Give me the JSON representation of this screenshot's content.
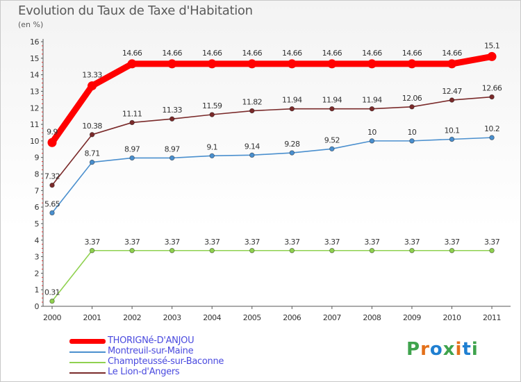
{
  "title": "Evolution du Taux de Taxe d'Habitation",
  "subtitle": "(en %)",
  "brand": {
    "text": "Proxiti",
    "colors": [
      "#3fa34d",
      "#e3701a",
      "#1f7fd1",
      "#3fa34d",
      "#e3701a",
      "#1f7fd1",
      "#3fa34d"
    ]
  },
  "chart_data": {
    "type": "line",
    "x": [
      "2000",
      "2001",
      "2002",
      "2003",
      "2004",
      "2005",
      "2006",
      "2007",
      "2008",
      "2009",
      "2010",
      "2011"
    ],
    "ylim": [
      0,
      16
    ],
    "yticks": [
      0,
      1,
      2,
      3,
      4,
      5,
      6,
      7,
      8,
      9,
      10,
      11,
      12,
      13,
      14,
      15,
      16
    ],
    "grid": false,
    "legend_position": "bottom-left",
    "series": [
      {
        "name": "THORIGNé-D'ANJOU",
        "color": "#ff0000",
        "values": [
          9.9,
          13.33,
          14.66,
          14.66,
          14.66,
          14.66,
          14.66,
          14.66,
          14.66,
          14.66,
          14.66,
          15.1
        ],
        "labels": [
          "9.9",
          "13.33",
          "14.66",
          "14.66",
          "14.66",
          "14.66",
          "14.66",
          "14.66",
          "14.66",
          "14.66",
          "14.66",
          "15.1"
        ]
      },
      {
        "name": "Montreuil-sur-Maine",
        "color": "#4a8fce",
        "values": [
          5.65,
          8.71,
          8.97,
          8.97,
          9.1,
          9.14,
          9.28,
          9.52,
          10,
          10,
          10.1,
          10.2
        ],
        "labels": [
          "5.65",
          "8.71",
          "8.97",
          "8.97",
          "9.1",
          "9.14",
          "9.28",
          "9.52",
          "10",
          "10",
          "10.1",
          "10.2"
        ]
      },
      {
        "name": "Champteussé-sur-Baconne",
        "color": "#8fd14f",
        "values": [
          0.31,
          3.37,
          3.37,
          3.37,
          3.37,
          3.37,
          3.37,
          3.37,
          3.37,
          3.37,
          3.37,
          3.37
        ],
        "labels": [
          "0.31",
          "3.37",
          "3.37",
          "3.37",
          "3.37",
          "3.37",
          "3.37",
          "3.37",
          "3.37",
          "3.37",
          "3.37",
          "3.37"
        ]
      },
      {
        "name": "Le Lion-d'Angers",
        "color": "#7a2a2a",
        "values": [
          7.32,
          10.38,
          11.11,
          11.33,
          11.59,
          11.82,
          11.94,
          11.94,
          11.94,
          12.06,
          12.47,
          12.66
        ],
        "labels": [
          "7.32",
          "10.38",
          "11.11",
          "11.33",
          "11.59",
          "11.82",
          "11.94",
          "11.94",
          "11.94",
          "12.06",
          "12.47",
          "12.66"
        ]
      }
    ]
  }
}
